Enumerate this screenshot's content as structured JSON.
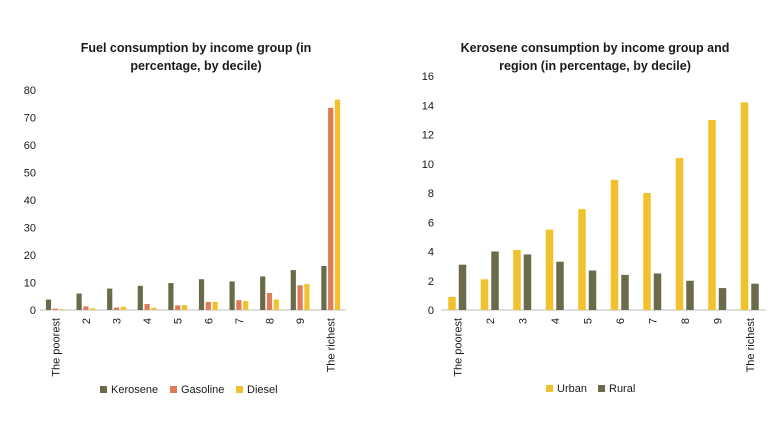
{
  "chart_data": [
    {
      "type": "bar",
      "title_lines": [
        "Fuel consumption by income group (in",
        "percentage, by decile)"
      ],
      "categories": [
        "The poorest",
        "2",
        "3",
        "4",
        "5",
        "6",
        "7",
        "8",
        "9",
        "The richest"
      ],
      "series": [
        {
          "name": "Kerosene",
          "color": "#6b6b4c",
          "values": [
            3.8,
            6.0,
            7.8,
            8.8,
            9.8,
            11.2,
            10.4,
            12.2,
            14.5,
            16.0
          ]
        },
        {
          "name": "Gasoline",
          "color": "#e07b57",
          "values": [
            0.5,
            1.3,
            0.9,
            2.2,
            1.7,
            2.9,
            3.6,
            6.2,
            9.0,
            73.5
          ]
        },
        {
          "name": "Diesel",
          "color": "#f2c12e",
          "values": [
            0.3,
            0.6,
            1.2,
            0.8,
            1.8,
            3.0,
            3.3,
            3.8,
            9.5,
            76.5
          ]
        }
      ],
      "ylim": [
        0,
        80
      ],
      "yticks": [
        "0",
        "10",
        "20",
        "30",
        "40",
        "50",
        "60",
        "70",
        "80"
      ],
      "grid": false,
      "legend": "bottom"
    },
    {
      "type": "bar",
      "title_lines": [
        "Kerosene consumption by income group and",
        "region (in percentage, by decile)"
      ],
      "categories": [
        "The poorest",
        "2",
        "3",
        "4",
        "5",
        "6",
        "7",
        "8",
        "9",
        "The richest"
      ],
      "series": [
        {
          "name": "Urban",
          "color": "#f2c12e",
          "values": [
            0.9,
            2.1,
            4.1,
            5.5,
            6.9,
            8.9,
            8.0,
            10.4,
            13.0,
            14.2
          ]
        },
        {
          "name": "Rural",
          "color": "#6b6b4c",
          "values": [
            3.1,
            4.0,
            3.8,
            3.3,
            2.7,
            2.4,
            2.5,
            2.0,
            1.5,
            1.8
          ]
        }
      ],
      "ylim": [
        0,
        16
      ],
      "yticks": [
        "0",
        "2",
        "4",
        "6",
        "8",
        "10",
        "12",
        "14",
        "16"
      ],
      "grid": false,
      "legend": "bottom"
    }
  ]
}
